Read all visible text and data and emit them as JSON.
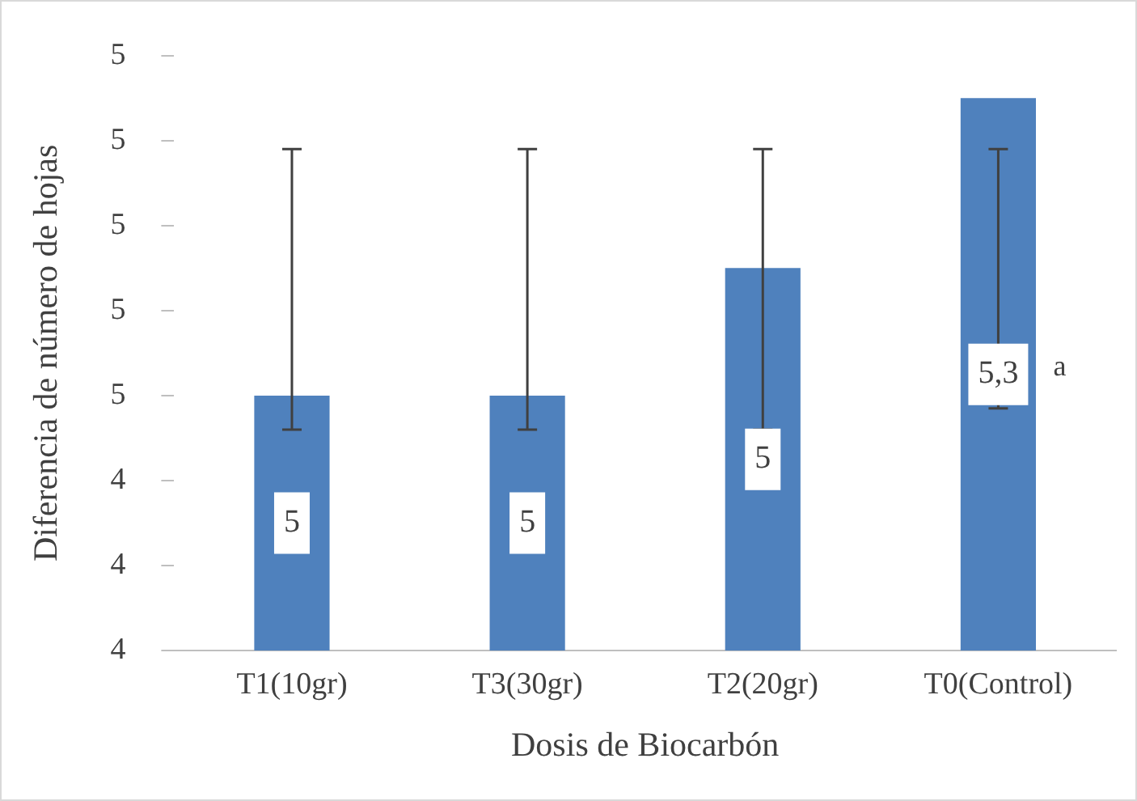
{
  "chart_data": {
    "type": "bar",
    "xlabel": "Dosis de Biocarbón",
    "ylabel": "Diferencia de número de hojas",
    "categories": [
      "T1(10gr)",
      "T3(30gr)",
      "T2(20gr)",
      "T0(Control)"
    ],
    "values": [
      4.6,
      4.6,
      4.9,
      5.3
    ],
    "color": "#4f81bd",
    "errors": [
      [
        4.52,
        5.18
      ],
      [
        4.52,
        5.18
      ],
      [
        4.52,
        5.18
      ],
      [
        4.57,
        5.18
      ]
    ],
    "value_labels": [
      "5",
      "5",
      "5",
      "5,3"
    ],
    "annotations": [
      "a"
    ],
    "ylim": [
      4,
      5.4
    ],
    "yticks": [
      {
        "value": 4,
        "label": "4"
      },
      {
        "value": 4.2,
        "label": "4"
      },
      {
        "value": 4.4,
        "label": "4"
      },
      {
        "value": 4.6,
        "label": "5"
      },
      {
        "value": 4.8,
        "label": "5"
      },
      {
        "value": 5,
        "label": "5"
      },
      {
        "value": 5.2,
        "label": "5"
      },
      {
        "value": 5.4,
        "label": "5"
      }
    ],
    "grid": false,
    "legend": false
  }
}
